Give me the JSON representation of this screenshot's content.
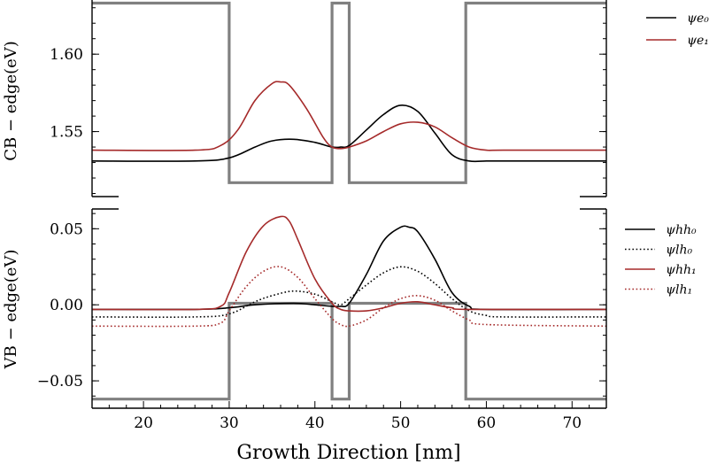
{
  "chart_data": [
    {
      "type": "line",
      "panel": "conduction-band",
      "ylabel": "CB − edge(eV)",
      "xlim": [
        14,
        74
      ],
      "ylim": [
        1.508,
        1.635
      ],
      "yticks": [
        1.55,
        1.6
      ],
      "ytick_labels": [
        "1.55",
        "1.60"
      ],
      "legend_position": "outside-top-right",
      "potential": {
        "color": "#808080",
        "x": [
          14,
          30,
          30,
          42,
          42,
          44,
          44,
          57.6,
          57.6,
          74
        ],
        "y": [
          1.633,
          1.633,
          1.517,
          1.517,
          1.633,
          1.633,
          1.517,
          1.517,
          1.633,
          1.633
        ]
      },
      "series": [
        {
          "name": "ψe₀",
          "color": "#000000",
          "style": "solid",
          "x": [
            14,
            26,
            30,
            33,
            35,
            37.5,
            40,
            42,
            43,
            44,
            46,
            48,
            50,
            52,
            54,
            56,
            58,
            60,
            62,
            74
          ],
          "y": [
            1.531,
            1.531,
            1.533,
            1.54,
            1.544,
            1.545,
            1.543,
            1.54,
            1.54,
            1.541,
            1.551,
            1.561,
            1.567,
            1.563,
            1.549,
            1.535,
            1.531,
            1.531,
            1.531,
            1.531
          ]
        },
        {
          "name": "ψe₁",
          "color": "#a52a2a",
          "style": "solid",
          "x": [
            14,
            26,
            29,
            31,
            33,
            35,
            36,
            37,
            39,
            41,
            42,
            43,
            44,
            46,
            48,
            50,
            52,
            54,
            56,
            58,
            60,
            62,
            74
          ],
          "y": [
            1.538,
            1.538,
            1.541,
            1.551,
            1.57,
            1.581,
            1.582,
            1.58,
            1.565,
            1.546,
            1.54,
            1.539,
            1.54,
            1.544,
            1.55,
            1.555,
            1.556,
            1.553,
            1.546,
            1.54,
            1.538,
            1.538,
            1.538
          ]
        }
      ]
    },
    {
      "type": "line",
      "panel": "valence-band",
      "xlabel": "Growth Direction [nm]",
      "ylabel": "VB − edge(eV)",
      "xlim": [
        14,
        74
      ],
      "ylim": [
        -0.068,
        0.063
      ],
      "yticks": [
        -0.05,
        0.0,
        0.05
      ],
      "ytick_labels": [
        "−0.05",
        "0.00",
        "0.05"
      ],
      "xticks": [
        20,
        30,
        40,
        50,
        60,
        70
      ],
      "xtick_labels": [
        "20",
        "30",
        "40",
        "50",
        "60",
        "70"
      ],
      "legend_position": "outside-right",
      "potential": {
        "color": "#808080",
        "x": [
          14,
          30,
          30,
          42,
          42,
          44,
          44,
          57.6,
          57.6,
          74
        ],
        "y": [
          -0.062,
          -0.062,
          0.001,
          0.001,
          -0.062,
          -0.062,
          0.001,
          0.001,
          -0.062,
          -0.062
        ]
      },
      "series": [
        {
          "name": "ψhh₀",
          "color": "#000000",
          "style": "solid",
          "x": [
            14,
            26,
            30,
            33,
            37.5,
            40,
            42,
            43,
            44,
            46,
            48,
            50,
            51,
            52,
            54,
            56,
            58,
            60,
            74
          ],
          "y": [
            -0.003,
            -0.003,
            -0.002,
            0.0,
            0.001,
            0.0,
            -0.001,
            -0.001,
            0.001,
            0.02,
            0.042,
            0.051,
            0.051,
            0.048,
            0.03,
            0.008,
            -0.001,
            -0.003,
            -0.003
          ]
        },
        {
          "name": "ψlh₀",
          "color": "#000000",
          "style": "dotted",
          "x": [
            14,
            26,
            30,
            33,
            35,
            37.5,
            40,
            42,
            43,
            44,
            46,
            48,
            50,
            52,
            54,
            56,
            58,
            60,
            62,
            74
          ],
          "y": [
            -0.008,
            -0.008,
            -0.006,
            0.002,
            0.006,
            0.009,
            0.007,
            0.002,
            0.0,
            0.004,
            0.013,
            0.021,
            0.025,
            0.022,
            0.014,
            0.004,
            -0.004,
            -0.007,
            -0.008,
            -0.008
          ]
        },
        {
          "name": "ψhh₁",
          "color": "#a52a2a",
          "style": "solid",
          "x": [
            14,
            26,
            29,
            30,
            32,
            34,
            36,
            37,
            38,
            40,
            42,
            43,
            44,
            46,
            48,
            50,
            52,
            54,
            56,
            58,
            74
          ],
          "y": [
            -0.003,
            -0.003,
            -0.001,
            0.008,
            0.035,
            0.052,
            0.058,
            0.055,
            0.043,
            0.017,
            0.001,
            -0.003,
            -0.004,
            -0.004,
            -0.002,
            0.001,
            0.002,
            0.0,
            -0.002,
            -0.003,
            -0.003
          ]
        },
        {
          "name": "ψlh₁",
          "color": "#a52a2a",
          "style": "dotted",
          "x": [
            14,
            26,
            29,
            30,
            32,
            34,
            36,
            38,
            40,
            42,
            43,
            44,
            46,
            48,
            50,
            52,
            54,
            56,
            58,
            60,
            74
          ],
          "y": [
            -0.014,
            -0.014,
            -0.012,
            -0.004,
            0.012,
            0.022,
            0.025,
            0.018,
            0.004,
            -0.009,
            -0.013,
            -0.014,
            -0.01,
            -0.002,
            0.004,
            0.006,
            0.003,
            -0.004,
            -0.01,
            -0.013,
            -0.014
          ]
        }
      ]
    }
  ]
}
